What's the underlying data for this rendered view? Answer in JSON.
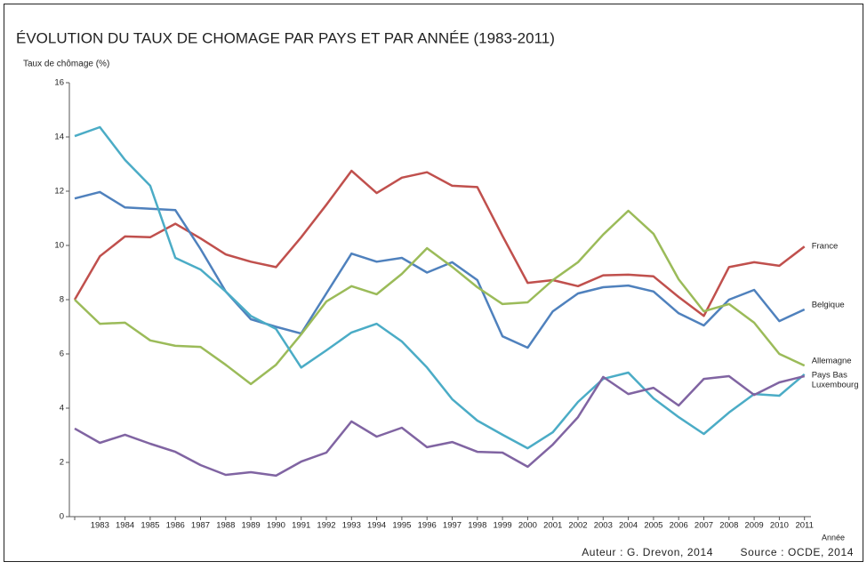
{
  "chart_data": {
    "type": "line",
    "title": "ÉVOLUTION  DU TAUX DE CHOMAGE PAR PAYS ET PAR ANNÉE (1983-2011)",
    "y_label": "Taux de chômage (%)",
    "x_label": "Année",
    "annotations": [
      "Auteur : G. Drevon, 2014",
      "Source : OCDE, 2014"
    ],
    "categories": [
      null,
      "1983",
      "1984",
      "1985",
      "1986",
      "1987",
      "1988",
      "1989",
      "1990",
      "1991",
      "1992",
      "1993",
      "1994",
      "1995",
      "1996",
      "1997",
      "1998",
      "1999",
      "2000",
      "2001",
      "2002",
      "2003",
      "2004",
      "2005",
      "2006",
      "2007",
      "2008",
      "2009",
      "2010",
      "2011"
    ],
    "ylim": [
      0,
      16
    ],
    "yticks": [
      0,
      2,
      4,
      6,
      8,
      10,
      12,
      14,
      16
    ],
    "grid": false,
    "legend": "end-labels",
    "series": [
      {
        "name": "France",
        "color": "#c0504d",
        "values": [
          8.0,
          9.6,
          10.33,
          10.3,
          10.8,
          10.26,
          9.67,
          9.4,
          9.2,
          10.3,
          11.5,
          12.75,
          11.93,
          12.5,
          12.7,
          12.2,
          12.15,
          10.35,
          8.62,
          8.72,
          8.5,
          8.9,
          8.92,
          8.86,
          8.1,
          7.4,
          9.2,
          9.38,
          9.25,
          9.96
        ]
      },
      {
        "name": "Belgique",
        "color": "#4f81bd",
        "values": [
          11.73,
          11.97,
          11.4,
          11.35,
          11.3,
          9.87,
          8.3,
          7.28,
          7.0,
          6.75,
          8.23,
          9.7,
          9.4,
          9.54,
          9.0,
          9.38,
          8.72,
          6.65,
          6.23,
          7.57,
          8.23,
          8.46,
          8.52,
          8.3,
          7.5,
          7.05,
          8.0,
          8.36,
          7.21,
          7.64
        ]
      },
      {
        "name": "Allemagne",
        "color": "#9bbb59",
        "values": [
          8.0,
          7.11,
          7.15,
          6.5,
          6.3,
          6.26,
          5.6,
          4.89,
          5.6,
          6.72,
          7.93,
          8.5,
          8.2,
          8.95,
          9.9,
          9.21,
          8.46,
          7.84,
          7.9,
          8.72,
          9.38,
          10.4,
          11.28,
          10.43,
          8.75,
          7.57,
          7.84,
          7.15,
          6.0,
          5.57
        ]
      },
      {
        "name": "Pays Bas",
        "color": "#4bacc6",
        "values": [
          14.03,
          14.36,
          13.15,
          12.2,
          9.54,
          9.11,
          8.3,
          7.4,
          6.92,
          5.5,
          6.13,
          6.79,
          7.11,
          6.46,
          5.5,
          4.33,
          3.54,
          3.02,
          2.52,
          3.11,
          4.23,
          5.08,
          5.31,
          4.36,
          3.67,
          3.05,
          3.84,
          4.52,
          4.46,
          5.25
        ]
      },
      {
        "name": "Luxembourg",
        "color": "#8064a2",
        "values": [
          3.25,
          2.72,
          3.02,
          2.69,
          2.39,
          1.9,
          1.54,
          1.64,
          1.51,
          2.03,
          2.36,
          3.51,
          2.95,
          3.28,
          2.56,
          2.75,
          2.39,
          2.36,
          1.84,
          2.66,
          3.67,
          5.15,
          4.52,
          4.75,
          4.1,
          5.08,
          5.18,
          4.49,
          4.95,
          5.18
        ]
      }
    ]
  }
}
